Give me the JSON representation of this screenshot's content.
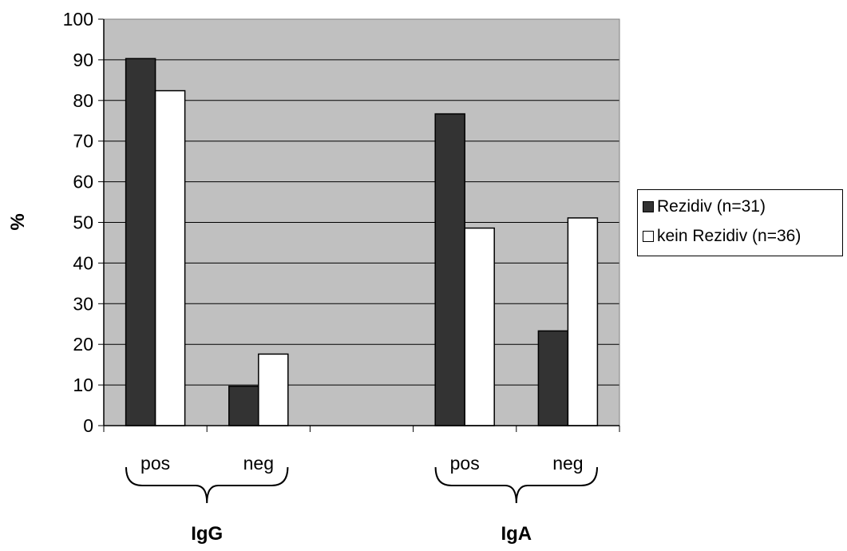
{
  "chart_data": {
    "type": "bar",
    "title": "",
    "xlabel": "",
    "ylabel": "%",
    "ylim": [
      0,
      100
    ],
    "yticks": [
      "0",
      "10",
      "20",
      "30",
      "40",
      "50",
      "60",
      "70",
      "80",
      "90",
      "100"
    ],
    "grid": true,
    "legend_position": "right",
    "groups": [
      {
        "label": "IgG",
        "categories": [
          "pos",
          "neg"
        ]
      },
      {
        "label": "IgA",
        "categories": [
          "pos",
          "neg"
        ]
      }
    ],
    "categories": [
      "pos",
      "neg",
      "",
      "pos",
      "neg"
    ],
    "series": [
      {
        "name": "Rezidiv (n=31)",
        "color": "#333333",
        "values": [
          90.3,
          9.7,
          null,
          76.7,
          23.3
        ]
      },
      {
        "name": "kein Rezidiv (n=36)",
        "color": "#ffffff",
        "values": [
          82.4,
          17.6,
          null,
          48.6,
          51.1
        ]
      }
    ],
    "plot_background": "#c0c0c0"
  }
}
